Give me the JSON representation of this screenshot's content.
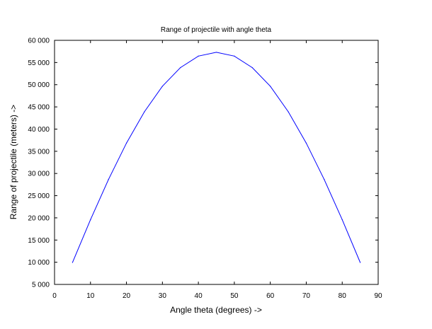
{
  "chart_data": {
    "type": "line",
    "title": "Range of projectile with angle theta",
    "xlabel": "Angle theta (degrees) ->",
    "ylabel": "Range of projectile (meters) ->",
    "xlim": [
      0,
      90
    ],
    "ylim": [
      5000,
      60000
    ],
    "x_ticks": [
      0,
      10,
      20,
      30,
      40,
      50,
      60,
      70,
      80,
      90
    ],
    "x_tick_labels": [
      "0",
      "10",
      "20",
      "30",
      "40",
      "50",
      "60",
      "70",
      "80",
      "90"
    ],
    "y_ticks": [
      5000,
      10000,
      15000,
      20000,
      25000,
      30000,
      35000,
      40000,
      45000,
      50000,
      55000,
      60000
    ],
    "y_tick_labels": [
      "5 000",
      "10 000",
      "15 000",
      "20 000",
      "25 000",
      "30 000",
      "35 000",
      "40 000",
      "45 000",
      "50 000",
      "55 000",
      "60 000"
    ],
    "grid": false,
    "legend": "none",
    "series": [
      {
        "color": "#0000ff",
        "x": [
          5,
          10,
          15,
          20,
          25,
          30,
          35,
          40,
          45,
          50,
          55,
          60,
          65,
          70,
          75,
          80,
          85
        ],
        "y": [
          9950,
          19600,
          28650,
          36850,
          43900,
          49650,
          53850,
          56450,
          57300,
          56450,
          53850,
          49650,
          43900,
          36850,
          28650,
          19600,
          9950
        ]
      }
    ]
  }
}
